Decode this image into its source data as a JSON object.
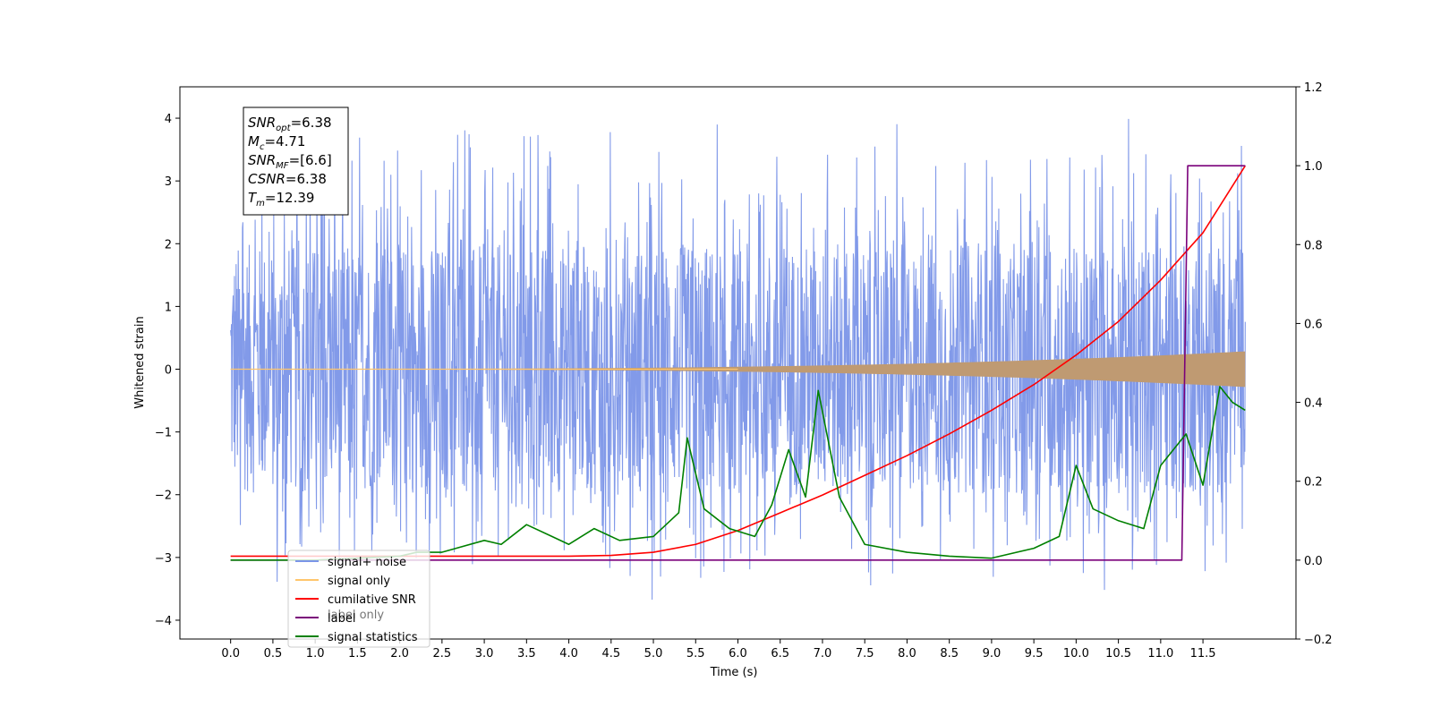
{
  "chart_data": {
    "type": "line",
    "xlabel": "Time (s)",
    "ylabel_left": "Whitened strain",
    "ylabel_right": "",
    "xlim": [
      -0.6,
      12.6
    ],
    "ylim_left": [
      -4.3,
      4.5
    ],
    "ylim_right": [
      -0.2,
      1.2
    ],
    "x_ticks": [
      "0.0",
      "0.5",
      "1.0",
      "1.5",
      "2.0",
      "2.5",
      "3.0",
      "3.5",
      "4.0",
      "4.5",
      "5.0",
      "5.5",
      "6.0",
      "6.5",
      "7.0",
      "7.5",
      "8.0",
      "8.5",
      "9.0",
      "9.5",
      "10.0",
      "10.5",
      "11.0",
      "11.5"
    ],
    "y_ticks_left": [
      "4",
      "3",
      "2",
      "1",
      "0",
      "−1",
      "−2",
      "−3",
      "−4"
    ],
    "y_ticks_right": [
      "1.2",
      "1.0",
      "0.8",
      "0.6",
      "0.4",
      "0.2",
      "0.0",
      "−0.2"
    ],
    "grid": false,
    "legend_position": "lower-left",
    "info_box": {
      "lines": [
        {
          "base": "SNR",
          "sub": "opt",
          "value": "=6.38"
        },
        {
          "base": "M",
          "sub": "c",
          "value": "=4.71"
        },
        {
          "base": "SNR",
          "sub": "MF",
          "value": "=[6.6]"
        },
        {
          "base": "CSNR",
          "sub": "",
          "value": "=6.38"
        },
        {
          "base": "T",
          "sub": "m",
          "value": "=12.39"
        }
      ]
    },
    "series": [
      {
        "name": "signal+ noise",
        "color": "#7b95e8",
        "axis": "left",
        "kind": "noise",
        "x_range": [
          0.0,
          12.0
        ],
        "band_center": 0.0,
        "band_extent": [
          -2.0,
          2.0
        ],
        "peak_range": [
          -3.8,
          4.1
        ]
      },
      {
        "name": "signal only",
        "color": "#ffc56b",
        "axis": "left",
        "kind": "chirp",
        "x_range": [
          0.0,
          12.0
        ],
        "final_amplitude": 0.28
      },
      {
        "name": "cumilative SNR",
        "color": "#ff0000",
        "axis": "right",
        "x": [
          0.0,
          4.0,
          4.5,
          5.0,
          5.5,
          6.0,
          6.5,
          7.0,
          7.5,
          8.0,
          8.5,
          9.0,
          9.5,
          10.0,
          10.5,
          11.0,
          11.5,
          12.0
        ],
        "values": [
          0.01,
          0.01,
          0.012,
          0.02,
          0.04,
          0.075,
          0.12,
          0.165,
          0.215,
          0.265,
          0.32,
          0.38,
          0.445,
          0.52,
          0.605,
          0.71,
          0.83,
          1.0
        ]
      },
      {
        "name": "label",
        "color": "#7a007a",
        "axis": "right",
        "x": [
          0.0,
          11.25,
          11.32,
          12.0
        ],
        "values": [
          0.0,
          0.0,
          1.0,
          1.0
        ]
      },
      {
        "name": "signal statistics",
        "color": "#008000",
        "axis": "right",
        "x": [
          0.0,
          1.0,
          2.0,
          2.2,
          2.5,
          3.0,
          3.2,
          3.5,
          3.8,
          4.0,
          4.3,
          4.6,
          5.0,
          5.3,
          5.4,
          5.6,
          5.9,
          6.2,
          6.4,
          6.6,
          6.8,
          6.95,
          7.2,
          7.5,
          8.0,
          8.5,
          9.0,
          9.5,
          9.8,
          10.0,
          10.2,
          10.5,
          10.8,
          11.0,
          11.3,
          11.5,
          11.7,
          11.85,
          12.0
        ],
        "values": [
          0.0,
          0.0,
          0.01,
          0.02,
          0.02,
          0.05,
          0.04,
          0.09,
          0.06,
          0.04,
          0.08,
          0.05,
          0.06,
          0.12,
          0.31,
          0.13,
          0.08,
          0.06,
          0.14,
          0.28,
          0.16,
          0.43,
          0.16,
          0.04,
          0.02,
          0.01,
          0.005,
          0.03,
          0.06,
          0.24,
          0.13,
          0.1,
          0.08,
          0.24,
          0.32,
          0.19,
          0.44,
          0.4,
          0.38
        ]
      }
    ]
  },
  "legend": [
    {
      "label": "signal+ noise",
      "color": "#7b95e8"
    },
    {
      "label": "signal only",
      "color": "#ffc56b"
    },
    {
      "label": "cumilative SNR",
      "color": "#ff0000"
    },
    {
      "label": "label",
      "color": "#7a007a"
    },
    {
      "label": "signal statistics",
      "color": "#008000"
    }
  ],
  "ghost_legend": [
    {
      "label": "label only",
      "color": "#7a007a"
    }
  ]
}
